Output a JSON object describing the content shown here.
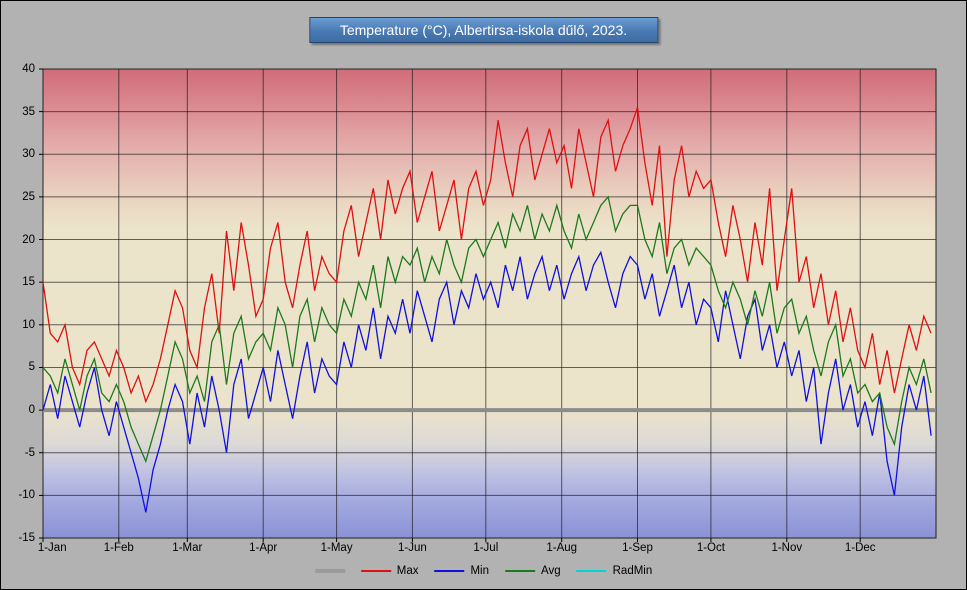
{
  "title": "Temperature (°C), Albertirsa-iskola dűlő, 2023.",
  "chart_data": {
    "type": "line",
    "title": "Temperature (°C), Albertirsa-iskola dűlő, 2023.",
    "ylabel": "Temperature (°C)",
    "xlabel": "",
    "ylim": [
      -15,
      40
    ],
    "yticks": [
      40,
      35,
      30,
      25,
      20,
      15,
      10,
      5,
      0,
      -5,
      -10,
      -15
    ],
    "days_total": 365,
    "step_days": 3,
    "grid": "on",
    "legend_position": "bottom-center",
    "months": [
      {
        "label": "1-Jan",
        "day": 0
      },
      {
        "label": "1-Feb",
        "day": 31
      },
      {
        "label": "1-Mar",
        "day": 59
      },
      {
        "label": "1-Apr",
        "day": 90
      },
      {
        "label": "1-May",
        "day": 120
      },
      {
        "label": "1-Jun",
        "day": 151
      },
      {
        "label": "1-Jul",
        "day": 181
      },
      {
        "label": "1-Aug",
        "day": 212
      },
      {
        "label": "1-Sep",
        "day": 243
      },
      {
        "label": "1-Oct",
        "day": 273
      },
      {
        "label": "1-Nov",
        "day": 304
      },
      {
        "label": "1-Dec",
        "day": 334
      }
    ],
    "zero_line": {
      "value": 0,
      "color": "#8c8c8c",
      "width": 4
    },
    "series": [
      {
        "name": "Max",
        "color": "#dd1111",
        "values": [
          15,
          9,
          8,
          10,
          5,
          3,
          7,
          8,
          6,
          4,
          7,
          5,
          2,
          4,
          1,
          3,
          6,
          10,
          14,
          12,
          7,
          5,
          12,
          16,
          9,
          21,
          14,
          22,
          17,
          11,
          13,
          19,
          22,
          15,
          12,
          17,
          21,
          14,
          18,
          16,
          15,
          21,
          24,
          18,
          22,
          26,
          20,
          27,
          23,
          26,
          28,
          22,
          25,
          28,
          21,
          24,
          27,
          20,
          26,
          28,
          24,
          27,
          34,
          29,
          25,
          31,
          33,
          27,
          30,
          33,
          29,
          31,
          26,
          33,
          29,
          25,
          32,
          34,
          28,
          31,
          33,
          35.5,
          29,
          24,
          31,
          18,
          27,
          31,
          25,
          28,
          26,
          27,
          22,
          18,
          24,
          20,
          15,
          22,
          17,
          26,
          14,
          20,
          26,
          15,
          18,
          12,
          16,
          10,
          14,
          8,
          12,
          7,
          5,
          9,
          3,
          7,
          2,
          6,
          10,
          7,
          11,
          9
        ]
      },
      {
        "name": "Min",
        "color": "#1111dd",
        "values": [
          0,
          3,
          -1,
          4,
          1,
          -2,
          2,
          5,
          0,
          -3,
          1,
          -2,
          -5,
          -8,
          -12,
          -7,
          -4,
          0,
          3,
          1,
          -4,
          2,
          -2,
          4,
          0,
          -5,
          3,
          6,
          -1,
          2,
          5,
          1,
          7,
          3,
          -1,
          4,
          8,
          2,
          6,
          4,
          3,
          8,
          5,
          10,
          7,
          12,
          6,
          11,
          9,
          13,
          9,
          14,
          11,
          8,
          13,
          15,
          10,
          14,
          12,
          16,
          13,
          15,
          12,
          17,
          14,
          18,
          13,
          16,
          18,
          14,
          17,
          13,
          16,
          18,
          14,
          17,
          18.5,
          15,
          12,
          16,
          18,
          17,
          13,
          16,
          11,
          14,
          17,
          12,
          15,
          10,
          13,
          12,
          8,
          14,
          10,
          6,
          11,
          13,
          7,
          10,
          5,
          8,
          4,
          7,
          1,
          5,
          -4,
          2,
          6,
          0,
          3,
          -2,
          1,
          -3,
          2,
          -6,
          -10,
          -2,
          3,
          0,
          4,
          -3
        ]
      },
      {
        "name": "Avg",
        "color": "#1c7a1c",
        "values": [
          5,
          4,
          2,
          6,
          3,
          0,
          4,
          6,
          2,
          1,
          3,
          1,
          -2,
          -4,
          -6,
          -3,
          0,
          4,
          8,
          6,
          2,
          4,
          1,
          8,
          10,
          3,
          9,
          11,
          6,
          8,
          9,
          7,
          12,
          10,
          5,
          11,
          13,
          8,
          12,
          10,
          9,
          13,
          11,
          15,
          13,
          17,
          12,
          18,
          15,
          18,
          17,
          19,
          15,
          18,
          16,
          20,
          17,
          15,
          19,
          20,
          18,
          20,
          22,
          19,
          23,
          21,
          24,
          20,
          23,
          21,
          24,
          21,
          19,
          23,
          20,
          22,
          24,
          25,
          21,
          23,
          24,
          24,
          20,
          18,
          22,
          16,
          19,
          20,
          17,
          19,
          18,
          17,
          14,
          12,
          15,
          13,
          10,
          14,
          11,
          15,
          9,
          12,
          13,
          9,
          11,
          7,
          4,
          8,
          10,
          4,
          6,
          2,
          3,
          1,
          2,
          -2,
          -4,
          1,
          5,
          3,
          6,
          2
        ]
      },
      {
        "name": "RadMin",
        "color": "#00d5d5",
        "values": []
      }
    ],
    "legend": [
      {
        "label": "",
        "color": "#9a9a9a",
        "thick": true
      },
      {
        "label": "Max",
        "color": "#dd1111",
        "thick": false
      },
      {
        "label": "Min",
        "color": "#1111dd",
        "thick": false
      },
      {
        "label": "Avg",
        "color": "#1c7a1c",
        "thick": false
      },
      {
        "label": "RadMin",
        "color": "#00d5d5",
        "thick": false
      }
    ]
  }
}
